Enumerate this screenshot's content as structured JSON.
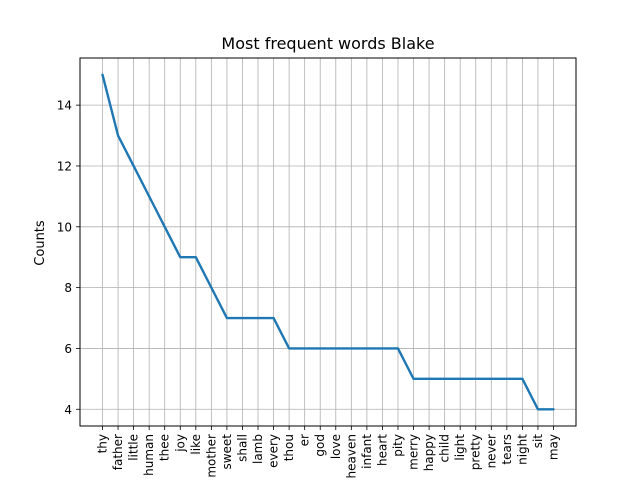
{
  "chart_data": {
    "type": "line",
    "title": "Most frequent words Blake",
    "xlabel": "",
    "ylabel": "Counts",
    "categories": [
      "thy",
      "father",
      "little",
      "human",
      "thee",
      "joy",
      "like",
      "mother",
      "sweet",
      "shall",
      "lamb",
      "every",
      "thou",
      "er",
      "god",
      "love",
      "heaven",
      "infant",
      "heart",
      "pity",
      "merry",
      "happy",
      "child",
      "light",
      "pretty",
      "never",
      "tears",
      "night",
      "sit",
      "may"
    ],
    "series": [
      {
        "values": [
          15,
          13,
          12,
          11,
          10,
          9,
          9,
          8,
          7,
          7,
          7,
          7,
          6,
          6,
          6,
          6,
          6,
          6,
          6,
          6,
          5,
          5,
          5,
          5,
          5,
          5,
          5,
          5,
          4,
          4
        ]
      }
    ],
    "yticks": [
      4,
      6,
      8,
      10,
      12,
      14
    ],
    "ylim": [
      3.45,
      15.55
    ],
    "grid": true,
    "legend": "none",
    "line_color": "#1f77b4",
    "grid_color": "#b0b0b0"
  }
}
